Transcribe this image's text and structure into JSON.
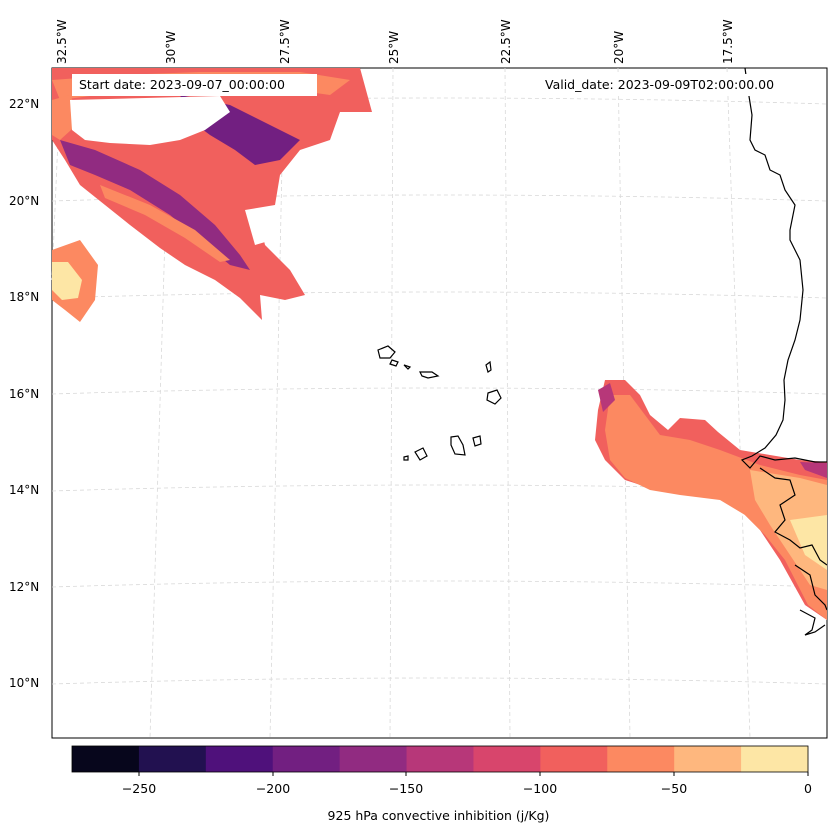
{
  "map": {
    "start_label": "Start date: 2023-09-07_00:00:00",
    "valid_label": "Valid_date: 2023-09-09T02:00:00.00",
    "longitude_labels": [
      "32.5°W",
      "30°W",
      "27.5°W",
      "25°W",
      "22.5°W",
      "20°W",
      "17.5°W"
    ],
    "latitude_labels": [
      "22°N",
      "20°N",
      "18°N",
      "16°N",
      "14°N",
      "12°N",
      "10°N"
    ],
    "land_outline_color": "#000000",
    "gridline_color": "#cccccc"
  },
  "colorbar": {
    "label": "925 hPa convective inhibition (j/Kg)",
    "ticks": [
      "−250",
      "−200",
      "−150",
      "−100",
      "−50",
      "0"
    ],
    "bounds": [
      -275,
      -250,
      -225,
      -200,
      -175,
      -150,
      -125,
      -100,
      -75,
      -50,
      -25,
      0
    ],
    "colors": [
      "#07061c",
      "#221150",
      "#4f117b",
      "#721f81",
      "#912b81",
      "#b73779",
      "#d8456c",
      "#f1605d",
      "#fc8961",
      "#feb77e",
      "#fde6a5"
    ]
  }
}
